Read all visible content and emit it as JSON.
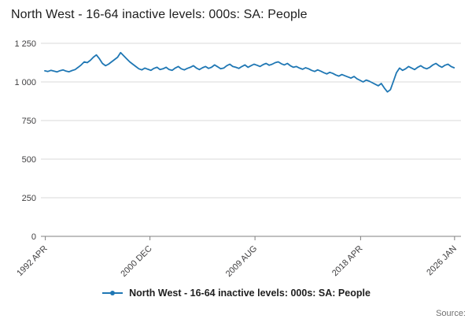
{
  "header": {
    "title": "North West - 16-64 inactive levels: 000s: SA: People"
  },
  "legend": {
    "label": "North West - 16-64 inactive levels: 000s: SA: People"
  },
  "source": {
    "label": "Source:"
  },
  "colors": {
    "line": "#1f77b4",
    "gridline": "#d9d9d9",
    "axis": "#808080",
    "tick_text": "#414042"
  },
  "chart_data": {
    "type": "line",
    "title": "North West - 16-64 inactive levels: 000s: SA: People",
    "xlabel": "",
    "ylabel": "",
    "ylim": [
      0,
      1250
    ],
    "xlim": [
      1992.25,
      2026.05
    ],
    "grid": "horizontal",
    "legend_position": "bottom",
    "y_ticks": [
      {
        "value": 0,
        "label": "0"
      },
      {
        "value": 250,
        "label": "250"
      },
      {
        "value": 500,
        "label": "500"
      },
      {
        "value": 750,
        "label": "750"
      },
      {
        "value": 1000,
        "label": "1 000"
      },
      {
        "value": 1250,
        "label": "1 250"
      }
    ],
    "x_ticks": [
      {
        "pos": 1992.29,
        "label": "1992 APR"
      },
      {
        "pos": 2000.92,
        "label": "2000 DEC"
      },
      {
        "pos": 2009.58,
        "label": "2009 AUG"
      },
      {
        "pos": 2018.29,
        "label": "2018 APR"
      },
      {
        "pos": 2026.04,
        "label": "2026 JAN"
      }
    ],
    "series_name": "North West - 16-64 inactive levels: 000s: SA: People",
    "x_start": 1992.25,
    "x_step_years": 0.25,
    "values": [
      1072,
      1068,
      1075,
      1070,
      1065,
      1073,
      1078,
      1070,
      1066,
      1074,
      1080,
      1095,
      1110,
      1130,
      1125,
      1140,
      1160,
      1175,
      1150,
      1120,
      1105,
      1115,
      1130,
      1145,
      1160,
      1190,
      1170,
      1150,
      1130,
      1115,
      1100,
      1085,
      1078,
      1090,
      1082,
      1075,
      1088,
      1095,
      1080,
      1085,
      1095,
      1080,
      1075,
      1090,
      1100,
      1085,
      1078,
      1088,
      1095,
      1105,
      1090,
      1080,
      1092,
      1100,
      1088,
      1095,
      1110,
      1098,
      1085,
      1090,
      1105,
      1115,
      1100,
      1095,
      1088,
      1100,
      1110,
      1095,
      1105,
      1115,
      1108,
      1100,
      1112,
      1120,
      1108,
      1115,
      1125,
      1130,
      1118,
      1110,
      1120,
      1105,
      1095,
      1100,
      1090,
      1082,
      1092,
      1085,
      1075,
      1068,
      1078,
      1070,
      1060,
      1052,
      1062,
      1055,
      1045,
      1038,
      1048,
      1040,
      1032,
      1025,
      1035,
      1020,
      1010,
      1000,
      1012,
      1005,
      995,
      985,
      975,
      990,
      960,
      935,
      950,
      1005,
      1060,
      1090,
      1075,
      1085,
      1100,
      1090,
      1080,
      1095,
      1105,
      1092,
      1085,
      1095,
      1110,
      1120,
      1105,
      1095,
      1108,
      1115,
      1100,
      1092
    ]
  }
}
